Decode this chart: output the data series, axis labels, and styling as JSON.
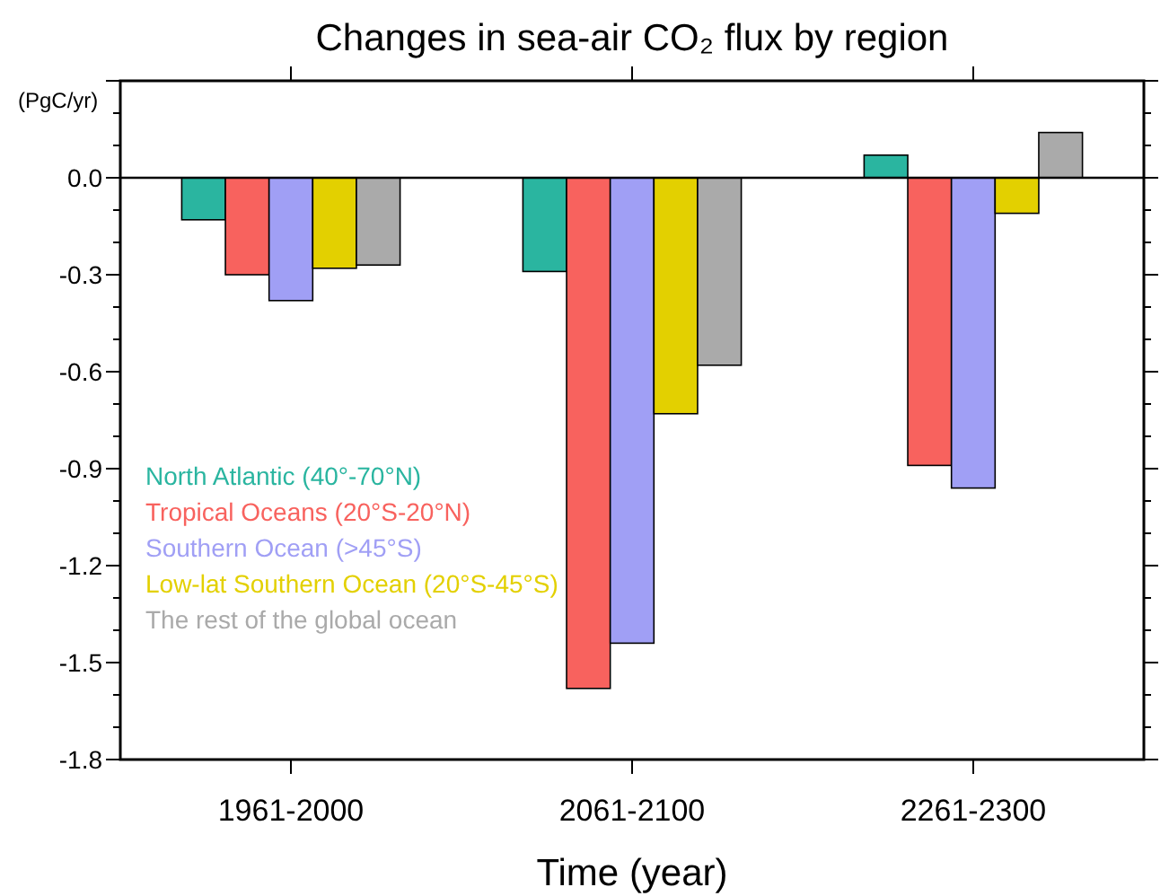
{
  "chart_data": {
    "type": "bar",
    "title": "Changes in sea-air CO₂ flux by region",
    "ylabel": "(PgC/yr)",
    "xlabel": "Time (year)",
    "categories": [
      "1961-2000",
      "2061-2100",
      "2261-2300"
    ],
    "series": [
      {
        "name": "North Atlantic (40°-70°N)",
        "color": "#2ab5a0",
        "values": [
          -0.13,
          -0.29,
          0.07
        ]
      },
      {
        "name": "Tropical Oceans (20°S-20°N)",
        "color": "#f8625e",
        "values": [
          -0.3,
          -1.58,
          -0.89
        ]
      },
      {
        "name": "Southern Ocean (>45°S)",
        "color": "#a09ff5",
        "values": [
          -0.38,
          -1.44,
          -0.96
        ]
      },
      {
        "name": "Low-lat Southern Ocean (20°S-45°S)",
        "color": "#e3d000",
        "values": [
          -0.28,
          -0.73,
          -0.11
        ]
      },
      {
        "name": "The rest of the global ocean",
        "color": "#aaaaaa",
        "values": [
          -0.27,
          -0.58,
          0.14
        ]
      }
    ],
    "ylim": [
      -1.8,
      0.3
    ],
    "yticks": [
      -1.8,
      -1.5,
      -1.2,
      -0.9,
      -0.6,
      -0.3,
      {
        "value": 0,
        "label": "0.0"
      },
      {
        "value": 0.3,
        "label": null
      }
    ],
    "ref_lines": [
      {
        "axis": "y",
        "value": 0,
        "color": "#000000"
      }
    ],
    "grid": false,
    "legend": "bottom left"
  }
}
